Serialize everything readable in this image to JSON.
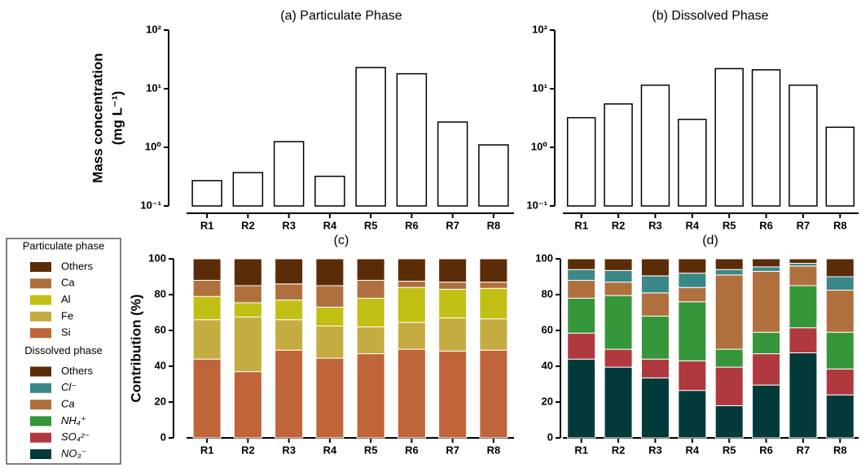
{
  "chart_data": [
    {
      "type": "bar",
      "title": "(a) Particulate Phase",
      "ylabel": [
        "Mass concentration",
        "(mg L⁻¹)"
      ],
      "categories": [
        "R1",
        "R2",
        "R3",
        "R4",
        "R5",
        "R6",
        "R7",
        "R8"
      ],
      "values": [
        0.27,
        0.37,
        1.25,
        0.32,
        23,
        18,
        2.7,
        1.1
      ],
      "color": "#ffffff",
      "edgecolor": "#000000",
      "log_y": true,
      "ylim": [
        0.1,
        100
      ],
      "yticks": [
        {
          "value": 0.1,
          "label": "10⁻¹"
        },
        {
          "value": 1,
          "label": "10⁰"
        },
        {
          "value": 10,
          "label": "10¹"
        },
        {
          "value": 100,
          "label": "10²"
        }
      ]
    },
    {
      "type": "bar",
      "title": "(b) Dissolved Phase",
      "categories": [
        "R1",
        "R2",
        "R3",
        "R4",
        "R5",
        "R6",
        "R7",
        "R8"
      ],
      "values": [
        3.2,
        5.5,
        11.5,
        3.0,
        22,
        21,
        11.5,
        2.2
      ],
      "color": "#ffffff",
      "edgecolor": "#000000",
      "log_y": true,
      "ylim": [
        0.1,
        100
      ],
      "yticks": [
        {
          "value": 0.1,
          "label": "10⁻¹"
        },
        {
          "value": 1,
          "label": "10⁰"
        },
        {
          "value": 10,
          "label": "10¹"
        },
        {
          "value": 100,
          "label": "10²"
        }
      ]
    },
    {
      "type": "bar",
      "stacked": true,
      "title": "(c)",
      "ylabel": [
        "Contribution (%)"
      ],
      "legend_title": "Particulate phase",
      "categories": [
        "R1",
        "R2",
        "R3",
        "R4",
        "R5",
        "R6",
        "R7",
        "R8"
      ],
      "series": [
        {
          "name": "Si",
          "color": "#c0653a",
          "values": [
            44,
            37,
            49,
            44.5,
            47,
            49.5,
            48.5,
            49
          ]
        },
        {
          "name": "Fe",
          "color": "#c4ac40",
          "values": [
            22,
            30.5,
            17,
            18,
            15,
            15,
            18.5,
            17.5
          ]
        },
        {
          "name": "Al",
          "color": "#c2bf14",
          "values": [
            13,
            8,
            11,
            10.5,
            16,
            19.5,
            16,
            17
          ]
        },
        {
          "name": "Ca",
          "color": "#b0703e",
          "values": [
            9,
            9.5,
            9,
            12,
            10,
            3.5,
            4,
            3.5
          ]
        },
        {
          "name": "Others",
          "color": "#5b2c08",
          "values": [
            12,
            15,
            14,
            15,
            12,
            12.5,
            13,
            13
          ]
        }
      ],
      "ylim": [
        0,
        100
      ],
      "yticks": [
        0,
        20,
        40,
        60,
        80,
        100
      ]
    },
    {
      "type": "bar",
      "stacked": true,
      "title": "(d)",
      "legend_title": "Dissolved phase",
      "categories": [
        "R1",
        "R2",
        "R3",
        "R4",
        "R5",
        "R6",
        "R7",
        "R8"
      ],
      "series": [
        {
          "name": "NO₃⁻",
          "color": "#023a3a",
          "values": [
            44,
            39.5,
            33.5,
            26.5,
            18,
            29.5,
            47.5,
            24
          ]
        },
        {
          "name": "SO₄²⁻",
          "color": "#b0383f",
          "values": [
            14.5,
            10,
            10.5,
            16.5,
            21.5,
            17.5,
            14,
            14.5
          ]
        },
        {
          "name": "NH₄⁺",
          "color": "#36963a",
          "values": [
            19.5,
            30,
            24,
            33,
            10,
            12,
            23.5,
            20.5
          ]
        },
        {
          "name": "Ca",
          "color": "#b0703e",
          "values": [
            10,
            7.5,
            13,
            8,
            41.5,
            34,
            11,
            23.5
          ]
        },
        {
          "name": "Cl⁻",
          "color": "#3a8888",
          "values": [
            6,
            6.5,
            9.5,
            8,
            3,
            2.5,
            1.5,
            7.5
          ]
        },
        {
          "name": "Others",
          "color": "#5b2c08",
          "values": [
            6,
            6.5,
            9.5,
            8,
            6,
            4.5,
            2.5,
            10
          ]
        }
      ],
      "ylim": [
        0,
        100
      ],
      "yticks": [
        0,
        20,
        40,
        60,
        80,
        100
      ]
    }
  ]
}
